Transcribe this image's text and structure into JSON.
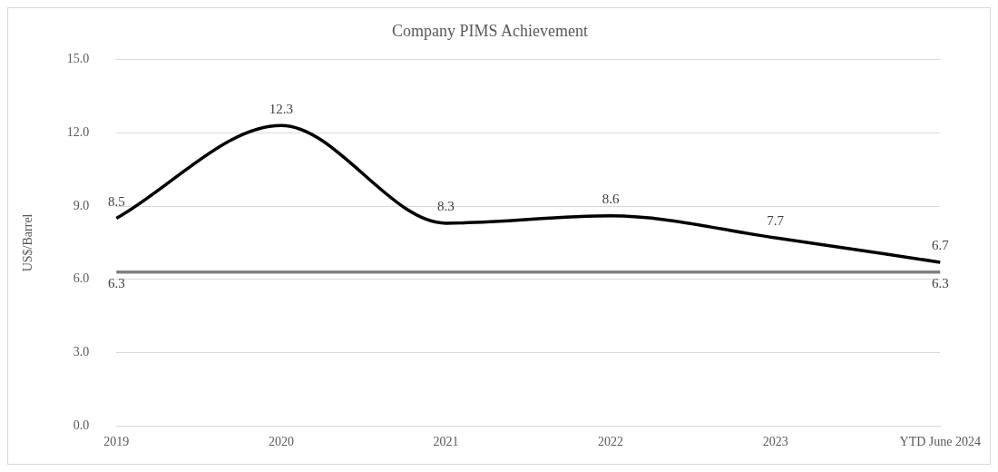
{
  "chart_data": {
    "type": "line",
    "title": "Company PIMS Achievement",
    "ylabel": "US$/Barrel",
    "categories": [
      "2019",
      "2020",
      "2021",
      "2022",
      "2023",
      "YTD June 2024"
    ],
    "series": [
      {
        "color": "#000000",
        "values": [
          8.5,
          12.3,
          8.3,
          8.6,
          7.7,
          6.7
        ]
      },
      {
        "color": "#808080",
        "values": [
          6.3,
          6.3,
          6.3,
          6.3,
          6.3,
          6.3
        ],
        "value_labels": [
          "6.3",
          null,
          null,
          null,
          null,
          "6.3"
        ]
      }
    ],
    "ylim": [
      0,
      15
    ],
    "yticks": [
      {
        "value": 0,
        "label": "0.0"
      },
      {
        "value": 3,
        "label": "3.0"
      },
      {
        "value": 6,
        "label": "6.0"
      },
      {
        "value": 9,
        "label": "9.0"
      },
      {
        "value": 12,
        "label": "12.0"
      },
      {
        "value": 15,
        "label": "15.0"
      }
    ],
    "grid": "y",
    "legend": false,
    "marker": "none",
    "line_style": "solid",
    "data_labels": true
  }
}
